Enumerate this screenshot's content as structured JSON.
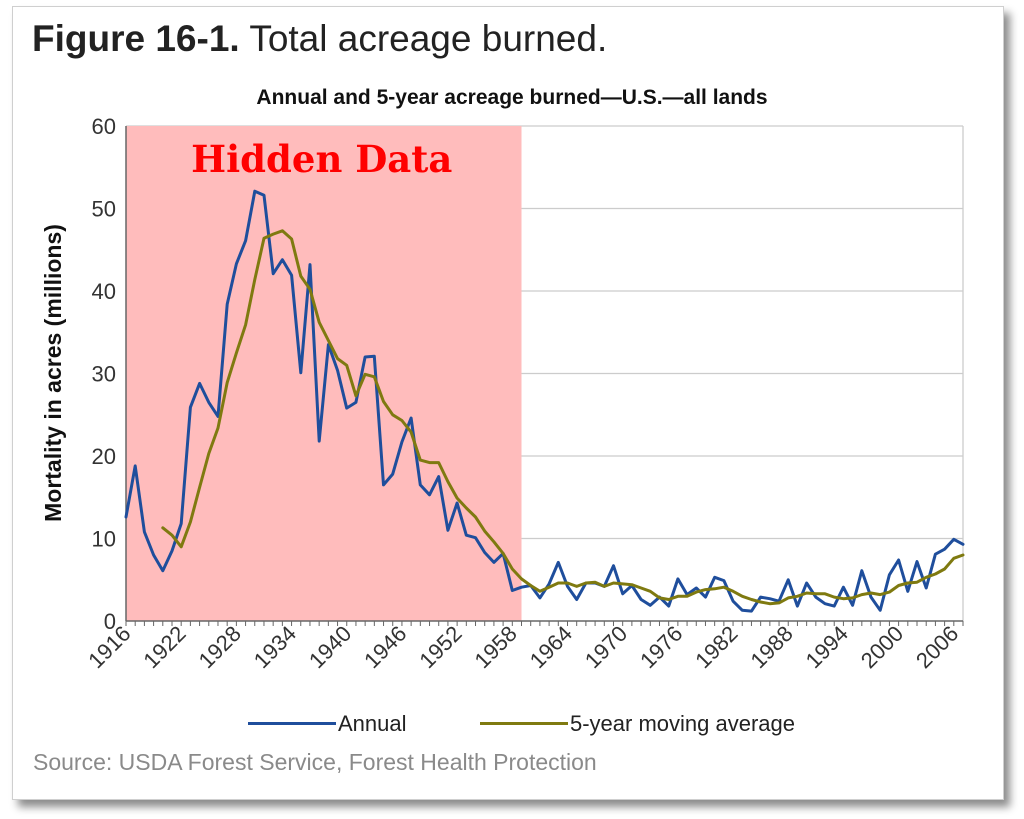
{
  "figure": {
    "number": "Figure 16-1.",
    "caption": "Total acreage burned."
  },
  "source_note": "Source: USDA Forest Service, Forest Health Protection",
  "overlay_label": "Hidden Data",
  "colors": {
    "annual": "#1f4e9c",
    "moving_average": "#7f7a10",
    "overlay": "#ffbcbc",
    "overlay_text": "#ff0000",
    "grid": "#cccccc"
  },
  "chart_data": {
    "type": "line",
    "title": "Annual and 5-year acreage burned—U.S.—all lands",
    "ylabel": "Mortality in acres (millions)",
    "xlabel": "",
    "xlim": [
      1916,
      2007
    ],
    "ylim": [
      0,
      60
    ],
    "yticks": [
      0,
      10,
      20,
      30,
      40,
      50,
      60
    ],
    "xticks": [
      1916,
      1922,
      1928,
      1934,
      1940,
      1946,
      1952,
      1958,
      1964,
      1970,
      1976,
      1982,
      1988,
      1994,
      2000,
      2006
    ],
    "grid": true,
    "legend_position": "bottom",
    "hidden_range": [
      1916,
      1959
    ],
    "series": [
      {
        "name": "Annual",
        "x": [
          1916,
          1917,
          1918,
          1919,
          1920,
          1921,
          1922,
          1923,
          1924,
          1925,
          1926,
          1927,
          1928,
          1929,
          1930,
          1931,
          1932,
          1933,
          1934,
          1935,
          1936,
          1937,
          1938,
          1939,
          1940,
          1941,
          1942,
          1943,
          1944,
          1945,
          1946,
          1947,
          1948,
          1949,
          1950,
          1951,
          1952,
          1953,
          1954,
          1955,
          1956,
          1957,
          1958,
          1959,
          1960,
          1961,
          1962,
          1963,
          1964,
          1965,
          1966,
          1967,
          1968,
          1969,
          1970,
          1971,
          1972,
          1973,
          1974,
          1975,
          1976,
          1977,
          1978,
          1979,
          1980,
          1981,
          1982,
          1983,
          1984,
          1985,
          1986,
          1987,
          1988,
          1989,
          1990,
          1991,
          1992,
          1993,
          1994,
          1995,
          1996,
          1997,
          1998,
          1999,
          2000,
          2001,
          2002,
          2003,
          2004,
          2005,
          2006,
          2007
        ],
        "values": [
          12.6,
          18.8,
          10.8,
          8.0,
          6.1,
          8.5,
          11.8,
          25.9,
          28.8,
          26.5,
          24.8,
          38.4,
          43.3,
          46.1,
          52.1,
          51.6,
          42.1,
          43.8,
          41.9,
          30.1,
          43.2,
          21.8,
          33.5,
          30.4,
          25.8,
          26.5,
          32.0,
          32.1,
          16.5,
          17.8,
          21.7,
          24.6,
          16.5,
          15.3,
          17.5,
          11.0,
          14.3,
          10.4,
          10.1,
          8.3,
          7.1,
          8.2,
          3.7,
          4.1,
          4.3,
          2.8,
          4.5,
          7.1,
          4.2,
          2.6,
          4.6,
          4.6,
          4.2,
          6.7,
          3.3,
          4.3,
          2.6,
          1.9,
          2.9,
          1.8,
          5.1,
          3.2,
          4.0,
          2.9,
          5.3,
          4.9,
          2.4,
          1.3,
          1.2,
          2.9,
          2.7,
          2.4,
          5.0,
          1.8,
          4.6,
          2.9,
          2.1,
          1.8,
          4.1,
          1.9,
          6.1,
          2.9,
          1.3,
          5.6,
          7.4,
          3.6,
          7.2,
          4.0,
          8.1,
          8.7,
          9.9,
          9.3
        ]
      },
      {
        "name": "5-year moving average",
        "x": [
          1920,
          1921,
          1922,
          1923,
          1924,
          1925,
          1926,
          1927,
          1928,
          1929,
          1930,
          1931,
          1932,
          1933,
          1934,
          1935,
          1936,
          1937,
          1938,
          1939,
          1940,
          1941,
          1942,
          1943,
          1944,
          1945,
          1946,
          1947,
          1948,
          1949,
          1950,
          1951,
          1952,
          1953,
          1954,
          1955,
          1956,
          1957,
          1958,
          1959,
          1960,
          1961,
          1962,
          1963,
          1964,
          1965,
          1966,
          1967,
          1968,
          1969,
          1970,
          1971,
          1972,
          1973,
          1974,
          1975,
          1976,
          1977,
          1978,
          1979,
          1980,
          1981,
          1982,
          1983,
          1984,
          1985,
          1986,
          1987,
          1988,
          1989,
          1990,
          1991,
          1992,
          1993,
          1994,
          1995,
          1996,
          1997,
          1998,
          1999,
          2000,
          2001,
          2002,
          2003,
          2004,
          2005,
          2006,
          2007
        ],
        "values": [
          11.3,
          10.4,
          9.0,
          12.0,
          16.2,
          20.3,
          23.4,
          28.9,
          32.5,
          35.9,
          41.4,
          46.4,
          46.9,
          47.3,
          46.3,
          41.8,
          40.2,
          36.2,
          34.0,
          31.8,
          31.0,
          27.3,
          29.9,
          29.6,
          26.6,
          25.0,
          24.3,
          22.9,
          19.5,
          19.2,
          19.2,
          16.9,
          14.9,
          13.7,
          12.6,
          10.9,
          9.6,
          8.2,
          6.3,
          5.1,
          4.3,
          3.6,
          4.1,
          4.6,
          4.6,
          4.2,
          4.6,
          4.7,
          4.2,
          4.6,
          4.5,
          4.4,
          4.0,
          3.6,
          2.8,
          2.6,
          3.0,
          3.0,
          3.5,
          3.8,
          3.9,
          4.1,
          3.6,
          3.0,
          2.6,
          2.3,
          2.1,
          2.2,
          2.8,
          3.0,
          3.4,
          3.3,
          3.3,
          2.9,
          2.7,
          2.8,
          3.2,
          3.4,
          3.2,
          3.5,
          4.3,
          4.6,
          4.7,
          5.3,
          5.7,
          6.3,
          7.6,
          8.0
        ]
      }
    ]
  }
}
